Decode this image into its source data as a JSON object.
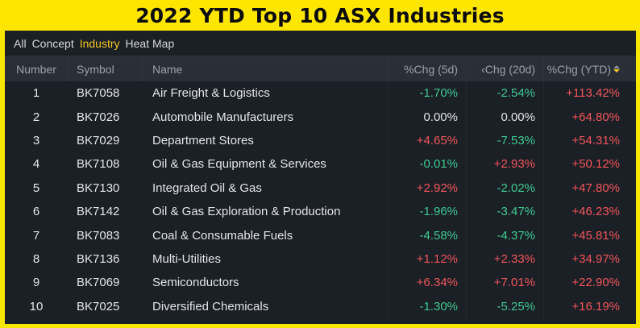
{
  "banner": {
    "title": "2022 YTD Top 10 ASX Industries"
  },
  "tabs": [
    {
      "label": "All",
      "active": false
    },
    {
      "label": "Concept",
      "active": false
    },
    {
      "label": "Industry",
      "active": true
    },
    {
      "label": "Heat Map",
      "active": false
    }
  ],
  "table": {
    "headers": {
      "number": "Number",
      "symbol": "Symbol",
      "name": "Name",
      "chg_5d": "%Chg (5d)",
      "chg_20d": "‹Chg (20d)",
      "chg_ytd": "%Chg (YTD)"
    },
    "rows": [
      {
        "number": "1",
        "symbol": "BK7058",
        "name": "Air Freight & Logistics",
        "chg_5d": "-1.70%",
        "chg_20d": "-2.54%",
        "chg_ytd": "+113.42%"
      },
      {
        "number": "2",
        "symbol": "BK7026",
        "name": "Automobile Manufacturers",
        "chg_5d": "0.00%",
        "chg_20d": "0.00%",
        "chg_ytd": "+64.80%"
      },
      {
        "number": "3",
        "symbol": "BK7029",
        "name": "Department Stores",
        "chg_5d": "+4.65%",
        "chg_20d": "-7.53%",
        "chg_ytd": "+54.31%"
      },
      {
        "number": "4",
        "symbol": "BK7108",
        "name": "Oil & Gas Equipment & Services",
        "chg_5d": "-0.01%",
        "chg_20d": "+2.93%",
        "chg_ytd": "+50.12%"
      },
      {
        "number": "5",
        "symbol": "BK7130",
        "name": "Integrated Oil & Gas",
        "chg_5d": "+2.92%",
        "chg_20d": "-2.02%",
        "chg_ytd": "+47.80%"
      },
      {
        "number": "6",
        "symbol": "BK7142",
        "name": "Oil & Gas Exploration & Production",
        "chg_5d": "-1.96%",
        "chg_20d": "-3.47%",
        "chg_ytd": "+46.23%"
      },
      {
        "number": "7",
        "symbol": "BK7083",
        "name": "Coal & Consumable Fuels",
        "chg_5d": "-4.58%",
        "chg_20d": "-4.37%",
        "chg_ytd": "+45.81%"
      },
      {
        "number": "8",
        "symbol": "BK7136",
        "name": "Multi-Utilities",
        "chg_5d": "+1.12%",
        "chg_20d": "+2.33%",
        "chg_ytd": "+34.97%"
      },
      {
        "number": "9",
        "symbol": "BK7069",
        "name": "Semiconductors",
        "chg_5d": "+6.34%",
        "chg_20d": "+7.01%",
        "chg_ytd": "+22.90%"
      },
      {
        "number": "10",
        "symbol": "BK7025",
        "name": "Diversified Chemicals",
        "chg_5d": "-1.30%",
        "chg_20d": "-5.25%",
        "chg_ytd": "+16.19%"
      }
    ]
  },
  "colors": {
    "up": "#f0565a",
    "down": "#3fca8f",
    "flat": "#e3e6ea",
    "active_tab": "#f3c623",
    "banner": "#ffe600",
    "panel": "#1b1f26"
  }
}
